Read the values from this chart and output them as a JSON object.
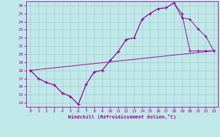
{
  "xlabel": "Windchill (Refroidissement éolien,°C)",
  "bg_color": "#c0e8e8",
  "grid_color": "#a0cccc",
  "line_color": "#990099",
  "xlim": [
    -0.5,
    23.5
  ],
  "ylim": [
    13.5,
    26.5
  ],
  "xticks": [
    0,
    1,
    2,
    3,
    4,
    5,
    6,
    7,
    8,
    9,
    10,
    11,
    12,
    13,
    14,
    15,
    16,
    17,
    18,
    19,
    20,
    21,
    22,
    23
  ],
  "yticks": [
    14,
    15,
    16,
    17,
    18,
    19,
    20,
    21,
    22,
    23,
    24,
    25,
    26
  ],
  "curve1_x": [
    0,
    1,
    2,
    3,
    4,
    5,
    6,
    7,
    8,
    9,
    10,
    11,
    12,
    13,
    14,
    15,
    16,
    17,
    18,
    19,
    20,
    21,
    22,
    23
  ],
  "curve1_y": [
    18.0,
    17.0,
    16.5,
    16.2,
    15.2,
    14.8,
    13.8,
    16.3,
    17.8,
    18.0,
    19.2,
    20.3,
    21.8,
    22.0,
    24.3,
    25.0,
    25.6,
    25.7,
    26.3,
    24.5,
    24.3,
    23.1,
    22.2,
    20.4
  ],
  "curve2_x": [
    0,
    1,
    2,
    3,
    4,
    5,
    6,
    7,
    8,
    9,
    10,
    11,
    12,
    13,
    14,
    15,
    16,
    17,
    18,
    19,
    20,
    21,
    22,
    23
  ],
  "curve2_y": [
    18.0,
    17.0,
    16.5,
    16.2,
    15.2,
    14.8,
    13.8,
    16.3,
    17.8,
    18.0,
    19.2,
    20.3,
    21.8,
    22.0,
    24.3,
    25.0,
    25.6,
    25.7,
    26.3,
    25.0,
    20.4,
    20.4,
    20.4,
    20.4
  ],
  "curve3_x": [
    0,
    23
  ],
  "curve3_y": [
    18.0,
    20.4
  ],
  "marker": "+"
}
